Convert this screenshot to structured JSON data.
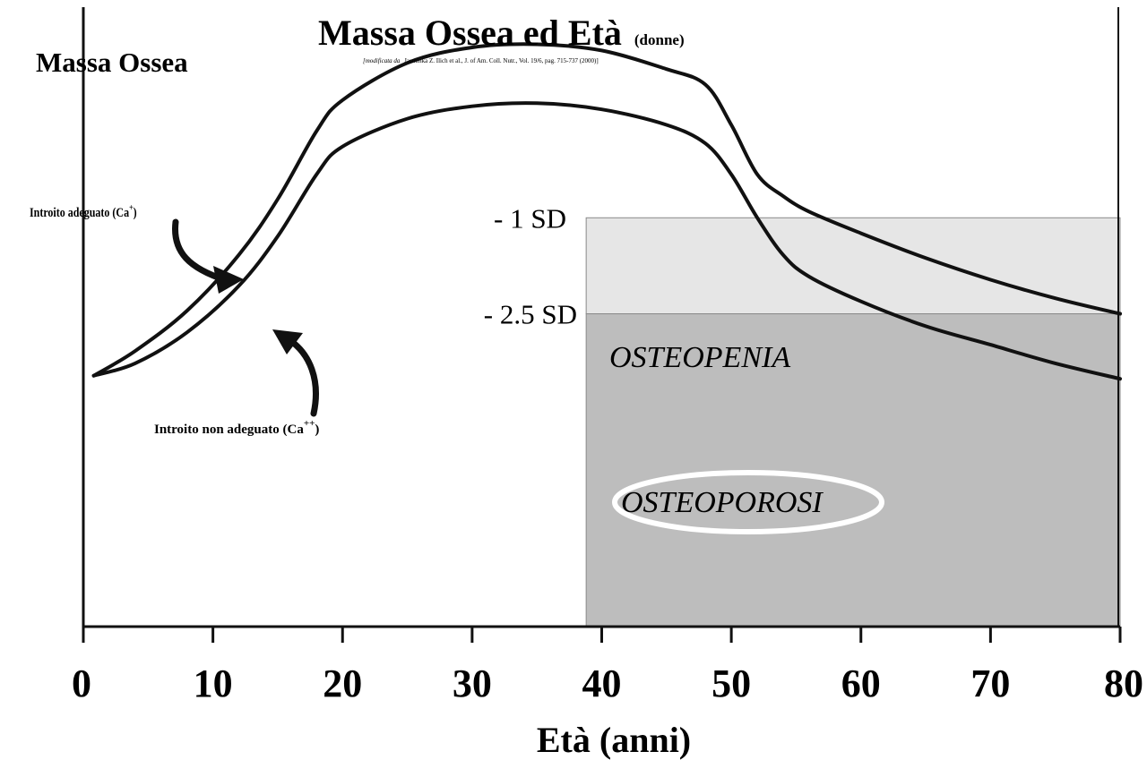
{
  "chart_data": {
    "type": "line",
    "title": "Massa Ossea ed Età",
    "title_suffix": "(donne)",
    "source_prefix": "[modificata da",
    "source_rest": "Jasminka Z. Ilich et al., J. of Am. Coll. Nutr., Vol. 19/6, pag. 715-737 (2000)]",
    "ylabel": "Massa Ossea",
    "xlabel": "Età (anni)",
    "xlim": [
      0,
      80
    ],
    "ylim": [
      0,
      100
    ],
    "x_ticks": [
      0,
      10,
      20,
      30,
      40,
      50,
      60,
      70,
      80
    ],
    "x_tick_labels": [
      "0",
      "10",
      "20",
      "30",
      "40",
      "50",
      "60",
      "70",
      "80"
    ],
    "series": [
      {
        "name": "Introito adeguato (Ca+)",
        "x": [
          0.8,
          4,
          8,
          12,
          15,
          18,
          20,
          25,
          30,
          35,
          40,
          45,
          48,
          50,
          52,
          54,
          56,
          60,
          65,
          70,
          75,
          80
        ],
        "y": [
          40.5,
          44.5,
          51,
          60,
          69,
          80,
          85,
          91,
          93.5,
          94,
          93,
          90,
          87.5,
          81,
          73,
          69.5,
          67,
          63.5,
          59.5,
          56,
          53,
          50.5
        ]
      },
      {
        "name": "Introito non adeguato (Ca++)",
        "x": [
          0.8,
          4,
          8,
          12,
          15,
          18,
          20,
          25,
          30,
          35,
          40,
          45,
          48,
          50,
          52,
          54,
          56,
          60,
          65,
          70,
          75,
          80
        ],
        "y": [
          40.5,
          42.5,
          47.5,
          55,
          63,
          73,
          77.5,
          82,
          84,
          84.5,
          83.5,
          81,
          78,
          73,
          66,
          60,
          56.5,
          52.5,
          48.5,
          45.5,
          42.5,
          40
        ]
      }
    ],
    "zones": [
      {
        "label": "OSTEOPENIA",
        "x_from": 38.8,
        "x_to": 80,
        "y_from": 50.5,
        "y_to": 66,
        "color": "#e6e6e6"
      },
      {
        "label": "OSTEOPOROSI",
        "x_from": 38.8,
        "x_to": 80,
        "y_from": 0,
        "y_to": 50.5,
        "color": "#bdbdbd"
      }
    ],
    "sd_labels": [
      {
        "label": "- 1 SD",
        "y": 66
      },
      {
        "label": "- 2.5 SD",
        "y": 50.5
      }
    ],
    "annotations": [
      {
        "label": "Introito adeguato (Ca",
        "sup": "+",
        "close": ")"
      },
      {
        "label": "Introito non adeguato (Ca",
        "sup": "++",
        "close": ")"
      }
    ],
    "colors": {
      "line": "#111111",
      "axis": "#111111",
      "osteopenia": "#e6e6e6",
      "osteoporosi": "#bdbdbd"
    }
  }
}
